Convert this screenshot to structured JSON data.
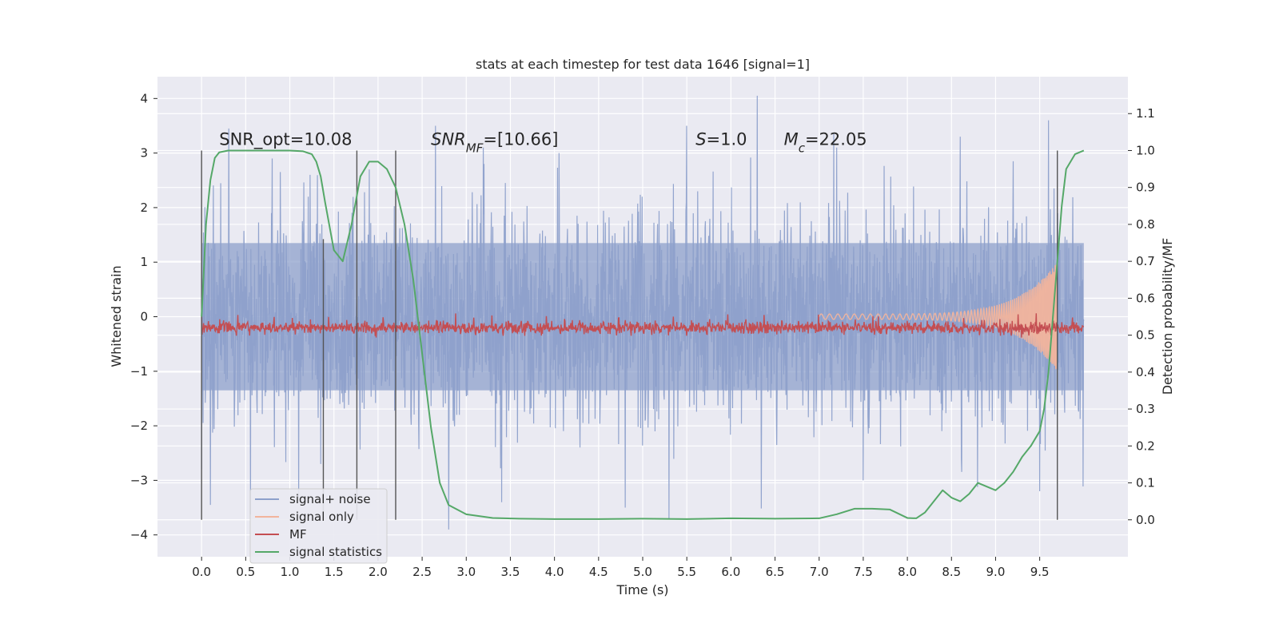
{
  "chart_data": {
    "type": "line",
    "title": "stats at each timestep for test data 1646 [signal=1]",
    "xlabel": "Time (s)",
    "ylabel_left": "Whitened strain",
    "ylabel_right": "Detection probability/MF",
    "xlim": [
      -0.5,
      10.5
    ],
    "ylim_left": [
      -4.4,
      4.4
    ],
    "ylim_right": [
      -0.1,
      1.2
    ],
    "x_ticks": [
      "0.0",
      "0.5",
      "1.0",
      "1.5",
      "2.0",
      "2.5",
      "3.0",
      "3.5",
      "4.0",
      "4.5",
      "5.0",
      "5.5",
      "6.0",
      "6.5",
      "7.0",
      "7.5",
      "8.0",
      "8.5",
      "9.0",
      "9.5"
    ],
    "x_tick_values": [
      0,
      0.5,
      1,
      1.5,
      2,
      2.5,
      3,
      3.5,
      4,
      4.5,
      5,
      5.5,
      6,
      6.5,
      7,
      7.5,
      8,
      8.5,
      9,
      9.5
    ],
    "y_left_ticks": [
      "−4",
      "−3",
      "−2",
      "−1",
      "0",
      "1",
      "2",
      "3",
      "4"
    ],
    "y_left_tick_values": [
      -4,
      -3,
      -2,
      -1,
      0,
      1,
      2,
      3,
      4
    ],
    "y_right_ticks": [
      "0.0",
      "0.1",
      "0.2",
      "0.3",
      "0.4",
      "0.5",
      "0.6",
      "0.7",
      "0.8",
      "0.9",
      "1.0",
      "1.1"
    ],
    "y_right_tick_values": [
      0,
      0.1,
      0.2,
      0.3,
      0.4,
      0.5,
      0.6,
      0.7,
      0.8,
      0.9,
      1.0,
      1.1
    ],
    "grid": true,
    "legend_placement": "lower-left",
    "annotations": [
      {
        "parts": [
          {
            "t": "SNR_opt=10.08",
            "i": false
          }
        ],
        "x": 0.2,
        "y_right": 1.015
      },
      {
        "parts": [
          {
            "t": "SNR",
            "i": true
          },
          {
            "t": "MF",
            "i": true,
            "sub": true
          },
          {
            "t": "=[10.66]",
            "i": false
          }
        ],
        "x": 2.6,
        "y_right": 1.015
      },
      {
        "parts": [
          {
            "t": "S",
            "i": true
          },
          {
            "t": "=1.0",
            "i": false
          }
        ],
        "x": 5.6,
        "y_right": 1.015
      },
      {
        "parts": [
          {
            "t": "M",
            "i": true
          },
          {
            "t": "c",
            "i": true,
            "sub": true
          },
          {
            "t": "=22.05",
            "i": false
          }
        ],
        "x": 6.6,
        "y_right": 1.015
      }
    ],
    "vlines": [
      {
        "x": 0.0,
        "y_right": [
          0.0,
          1.0
        ]
      },
      {
        "x": 1.38,
        "y_right": [
          0.0,
          0.76
        ]
      },
      {
        "x": 1.76,
        "y_right": [
          0.0,
          1.0
        ]
      },
      {
        "x": 2.2,
        "y_right": [
          0.0,
          1.0
        ]
      },
      {
        "x": 9.7,
        "y_right": [
          0.0,
          1.0
        ]
      }
    ],
    "series": [
      {
        "name": "signal+ noise",
        "color": "#8da0cb",
        "axis": "left",
        "style": "noise",
        "x_range": [
          0.0,
          10.0
        ],
        "band": [
          -1.35,
          1.35
        ],
        "peaks": [
          {
            "x": 0.1,
            "y": -3.45
          },
          {
            "x": 0.8,
            "y": 2.9
          },
          {
            "x": 1.35,
            "y": -2.7
          },
          {
            "x": 2.65,
            "y": 3.5
          },
          {
            "x": 2.8,
            "y": -3.9
          },
          {
            "x": 3.4,
            "y": -3.4
          },
          {
            "x": 5.3,
            "y": -3.7
          },
          {
            "x": 4.8,
            "y": -3.5
          },
          {
            "x": 4.05,
            "y": 3.0
          },
          {
            "x": 6.3,
            "y": 4.05
          },
          {
            "x": 5.5,
            "y": 3.5
          },
          {
            "x": 8.6,
            "y": 3.3
          },
          {
            "x": 9.5,
            "y": -3.2
          },
          {
            "x": 9.6,
            "y": 3.6
          },
          {
            "x": 7.5,
            "y": -3.0
          },
          {
            "x": 1.9,
            "y": 2.7
          },
          {
            "x": 3.2,
            "y": 2.8
          },
          {
            "x": 7.2,
            "y": 3.1
          }
        ]
      },
      {
        "name": "signal only",
        "color": "#f2b49c",
        "axis": "left",
        "style": "chirp",
        "x_range": [
          7.0,
          9.7
        ],
        "amplitude_start": 0.05,
        "amplitude_end": 1.0
      },
      {
        "name": "MF",
        "color": "#c44e52",
        "axis": "right",
        "style": "noise-thin",
        "x_range": [
          0.0,
          10.0
        ],
        "level": 0.52
      },
      {
        "name": "signal statistics",
        "color": "#55a868",
        "axis": "right",
        "style": "line",
        "x": [
          0.0,
          0.05,
          0.1,
          0.15,
          0.2,
          0.3,
          0.5,
          0.8,
          1.0,
          1.15,
          1.25,
          1.3,
          1.35,
          1.4,
          1.5,
          1.6,
          1.7,
          1.8,
          1.9,
          1.95,
          2.0,
          2.1,
          2.2,
          2.3,
          2.4,
          2.5,
          2.6,
          2.7,
          2.8,
          3.0,
          3.3,
          3.6,
          4.0,
          4.5,
          5.0,
          5.5,
          6.0,
          6.5,
          7.0,
          7.2,
          7.4,
          7.6,
          7.8,
          8.0,
          8.1,
          8.2,
          8.3,
          8.4,
          8.5,
          8.6,
          8.7,
          8.8,
          8.9,
          9.0,
          9.1,
          9.2,
          9.3,
          9.4,
          9.5,
          9.55,
          9.6,
          9.65,
          9.7,
          9.75,
          9.8,
          9.9,
          10.0
        ],
        "y": [
          0.55,
          0.8,
          0.92,
          0.98,
          0.995,
          1.0,
          1.0,
          1.0,
          1.0,
          0.998,
          0.99,
          0.97,
          0.93,
          0.86,
          0.73,
          0.7,
          0.8,
          0.93,
          0.97,
          0.97,
          0.97,
          0.95,
          0.9,
          0.8,
          0.65,
          0.45,
          0.25,
          0.1,
          0.04,
          0.015,
          0.005,
          0.003,
          0.002,
          0.002,
          0.003,
          0.002,
          0.004,
          0.003,
          0.004,
          0.015,
          0.03,
          0.03,
          0.028,
          0.005,
          0.004,
          0.02,
          0.05,
          0.08,
          0.06,
          0.05,
          0.07,
          0.1,
          0.09,
          0.08,
          0.1,
          0.13,
          0.17,
          0.2,
          0.24,
          0.3,
          0.4,
          0.55,
          0.7,
          0.85,
          0.95,
          0.99,
          1.0
        ]
      }
    ]
  }
}
